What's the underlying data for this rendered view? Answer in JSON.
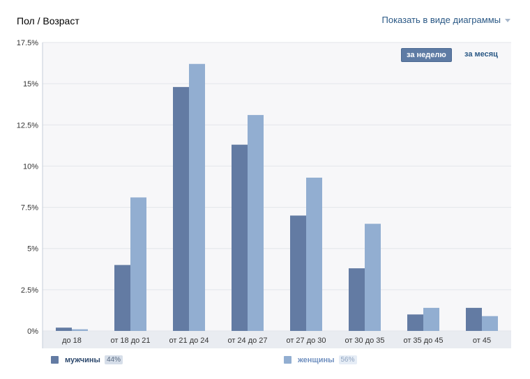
{
  "header": {
    "title": "Пол / Возраст",
    "view_toggle": "Показать в виде диаграммы"
  },
  "period_tabs": {
    "week": "за неделю",
    "month": "за месяц"
  },
  "legend": {
    "men": {
      "label": "мужчины",
      "percent": "44%"
    },
    "women": {
      "label": "женщины",
      "percent": "56%"
    }
  },
  "colors": {
    "men": "#637ba3",
    "women": "#92aed1",
    "plot_bg": "#f7f7f9",
    "axis_band": "#e9ecf1",
    "active_tab": "#5e7ba4"
  },
  "chart_data": {
    "type": "bar",
    "categories": [
      "до 18",
      "от 18 до 21",
      "от 21 до 24",
      "от 24 до 27",
      "от 27 до 30",
      "от 30 до 35",
      "от 35 до 45",
      "от 45"
    ],
    "series": [
      {
        "name": "мужчины",
        "values": [
          0.2,
          4.0,
          14.8,
          11.3,
          7.0,
          3.8,
          1.0,
          1.4
        ]
      },
      {
        "name": "женщины",
        "values": [
          0.1,
          8.1,
          16.2,
          13.1,
          9.3,
          6.5,
          1.4,
          0.9
        ]
      }
    ],
    "yticks": [
      "0%",
      "2.5%",
      "5%",
      "7.5%",
      "10%",
      "12.5%",
      "15%",
      "17.5%"
    ],
    "ylim": [
      0,
      17.5
    ],
    "grid": true,
    "legend_position": "bottom"
  }
}
